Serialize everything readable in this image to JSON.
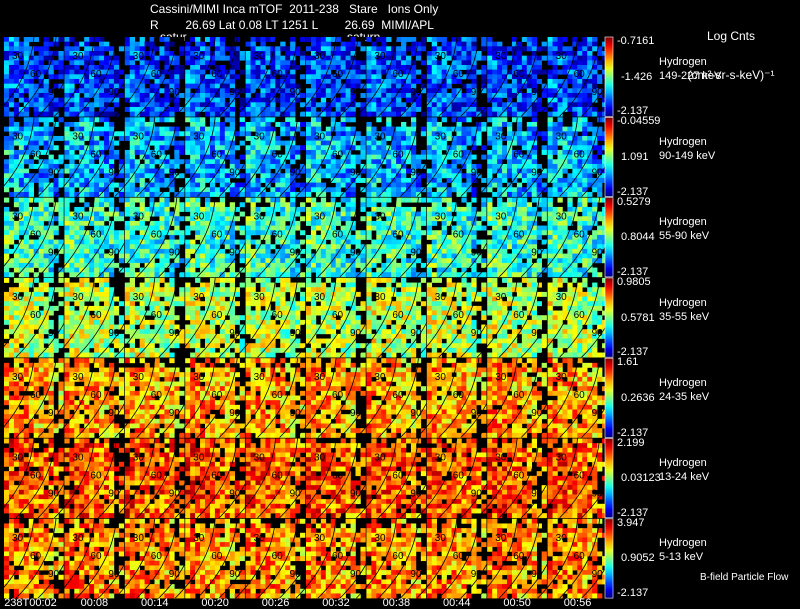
{
  "header": {
    "title": "Cassini/MIMI Inca mTOF  2011-238   Stare   Ions Only",
    "subtitle": "R        26.69 Lat 0.08 LT 1251 L        26.69  MIMI/APL",
    "saturn_labels": [
      "satur",
      "saturn"
    ],
    "units_line1": "Log Cnts",
    "units_line2": "(cm²-sr-s-keV)⁻¹"
  },
  "footer": {
    "times": [
      "238T00:02",
      "00:08",
      "00:14",
      "00:20",
      "00:26",
      "00:32",
      "00:38",
      "00:44",
      "00:50",
      "00:56"
    ],
    "bfield_label": "B-field Particle Flow"
  },
  "chart_data": {
    "type": "heatmap",
    "title": "Cassini/MIMI Inca mTOF  2011-238   Stare   Ions Only",
    "colorbar_label": "Log Cnts (cm²-sr-s-keV)⁻¹",
    "columns": [
      "238T00:02",
      "00:08",
      "00:14",
      "00:20",
      "00:26",
      "00:32",
      "00:38",
      "00:44",
      "00:50",
      "00:56"
    ],
    "contour_labels": [
      "30",
      "60",
      "90"
    ],
    "rows": [
      {
        "species": "Hydrogen",
        "energy": "149-227 keV",
        "cmax": -0.7161,
        "cmid": -1.426,
        "cmin": -2.137,
        "level": 0.18
      },
      {
        "species": "Hydrogen",
        "energy": "90-149 keV",
        "cmax": -0.04559,
        "cmid": 1.091,
        "cmin": -2.137,
        "level": 0.3
      },
      {
        "species": "Hydrogen",
        "energy": "55-90 keV",
        "cmax": 0.5279,
        "cmid": 0.8044,
        "cmin": -2.137,
        "level": 0.42
      },
      {
        "species": "Hydrogen",
        "energy": "35-55 keV",
        "cmax": 0.9805,
        "cmid": 0.5781,
        "cmin": -2.137,
        "level": 0.55
      },
      {
        "species": "Hydrogen",
        "energy": "24-35 keV",
        "cmax": 1.61,
        "cmid": 0.2636,
        "cmin": -2.137,
        "level": 0.7
      },
      {
        "species": "Hydrogen",
        "energy": "13-24 keV",
        "cmax": 2.199,
        "cmid": 0.03123,
        "cmin": -2.137,
        "level": 0.78
      },
      {
        "species": "Hydrogen",
        "energy": "5-13 keV",
        "cmax": 3.947,
        "cmid": 0.9052,
        "cmin": -2.137,
        "level": 0.72
      }
    ]
  }
}
